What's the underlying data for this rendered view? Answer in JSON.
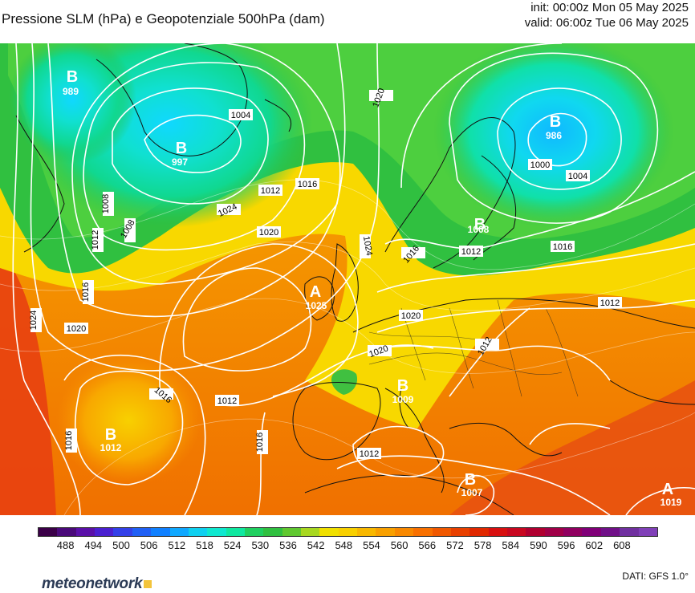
{
  "header": {
    "title": "Pressione SLM (hPa) e Geopotenziale 500hPa (dam)",
    "init": "init: 00:00z Mon 05 May 2025",
    "valid": "valid: 06:00z Tue 06 May 2025"
  },
  "legend": {
    "ticks": [
      "488",
      "494",
      "500",
      "506",
      "512",
      "518",
      "524",
      "530",
      "536",
      "542",
      "548",
      "554",
      "560",
      "566",
      "572",
      "578",
      "584",
      "590",
      "596",
      "602",
      "608"
    ],
    "colors": [
      "#3b0048",
      "#4a0a7a",
      "#5a10a8",
      "#4a20d0",
      "#3340e8",
      "#2060f5",
      "#1080ff",
      "#10a8ff",
      "#10d0f0",
      "#10e8d0",
      "#10e8a0",
      "#20d060",
      "#30c040",
      "#60c830",
      "#a8d820",
      "#f0e000",
      "#f8d000",
      "#f8b800",
      "#f8a000",
      "#f88800",
      "#f87000",
      "#f05800",
      "#e84000",
      "#e02800",
      "#d81010",
      "#c80820",
      "#b00030",
      "#a00048",
      "#900060",
      "#800078",
      "#701088",
      "#7030a0",
      "#8040b8"
    ]
  },
  "pressure_centres": [
    {
      "letter": "B",
      "value": "989"
    },
    {
      "letter": "B",
      "value": "997"
    },
    {
      "letter": "B",
      "value": "986"
    },
    {
      "letter": "B",
      "value": "1008"
    },
    {
      "letter": "A",
      "value": "1025"
    },
    {
      "letter": "B",
      "value": "1009"
    },
    {
      "letter": "B",
      "value": "1012"
    },
    {
      "letter": "B",
      "value": "1007"
    },
    {
      "letter": "A",
      "value": "1019"
    }
  ],
  "isobar_labels": [
    "1004",
    "1008",
    "1012",
    "1016",
    "1020",
    "1024",
    "1008",
    "1012",
    "1016",
    "1020",
    "1024",
    "1020",
    "1016",
    "1020",
    "1024",
    "1012",
    "1016",
    "1020",
    "1000",
    "1004",
    "1016",
    "1012",
    "1016",
    "1012",
    "1012",
    "1012",
    "1016"
  ],
  "footer": {
    "logo": "meteonetwork",
    "source": "DATI: GFS 1.0°"
  }
}
